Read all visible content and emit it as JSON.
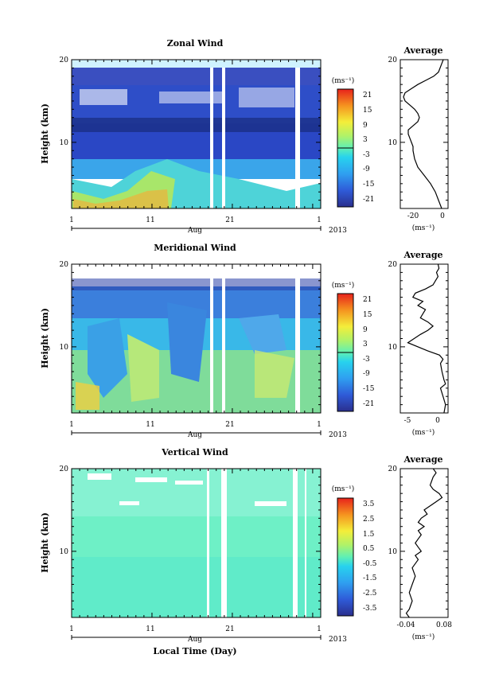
{
  "figure": {
    "xlabel": "Local Time (Day)",
    "year": "2013",
    "month": "Aug",
    "ylabel": "Height (km)",
    "avg_title": "Average",
    "unit": "(ms⁻¹)"
  },
  "chart_data": [
    {
      "type": "heatmap",
      "title": "Zonal Wind",
      "xlabel": "Aug",
      "ylabel": "Height (km)",
      "x_ticks": [
        "1",
        "11",
        "21",
        "1"
      ],
      "y_ticks": [
        "20",
        "10"
      ],
      "ylim": [
        2,
        20
      ],
      "colorbar": {
        "label": "(ms⁻¹)",
        "ticks": [
          "21",
          "15",
          "9",
          "3",
          "-3",
          "-9",
          "-15",
          "-21"
        ],
        "range": [
          -24,
          24
        ]
      }
    },
    {
      "type": "line",
      "title": "Average",
      "xlabel": "(ms⁻¹)",
      "x_ticks": [
        "-20",
        "0"
      ],
      "y_ticks": [
        "20",
        "10"
      ],
      "xlim": [
        -27,
        3
      ],
      "ylim": [
        2,
        20
      ],
      "x": [
        0,
        -1,
        -2,
        -3,
        -6,
        -11,
        -16,
        -20,
        -24,
        -25,
        -24,
        -21,
        -18,
        -16,
        -15,
        -16,
        -19,
        -22,
        -22,
        -21,
        -20,
        -19,
        -19,
        -18,
        -16,
        -12,
        -8,
        -5,
        -3,
        -1
      ],
      "y": [
        20,
        19.5,
        19,
        18.5,
        18,
        17.5,
        17,
        16.5,
        16,
        15.5,
        15,
        14.5,
        14,
        13.5,
        13,
        12.5,
        12,
        11.5,
        11,
        10.5,
        10,
        9.5,
        9,
        8,
        7,
        6,
        5,
        4,
        3,
        2
      ]
    },
    {
      "type": "heatmap",
      "title": "Meridional Wind",
      "xlabel": "Aug",
      "ylabel": "Height (km)",
      "x_ticks": [
        "1",
        "11",
        "21",
        "1"
      ],
      "y_ticks": [
        "20",
        "10"
      ],
      "ylim": [
        2,
        20
      ],
      "colorbar": {
        "label": "(ms⁻¹)",
        "ticks": [
          "21",
          "15",
          "9",
          "3",
          "-3",
          "-9",
          "-15",
          "-21"
        ],
        "range": [
          -24,
          24
        ]
      }
    },
    {
      "type": "line",
      "title": "Average",
      "xlabel": "(ms⁻¹)",
      "x_ticks": [
        "-5",
        "0"
      ],
      "y_ticks": [
        "20",
        "10"
      ],
      "xlim": [
        -7.5,
        2
      ],
      "ylim": [
        2,
        20
      ],
      "x": [
        0,
        0.2,
        -0.3,
        0,
        -0.5,
        -1,
        -2.5,
        -4.5,
        -5,
        -3,
        -4,
        -2.5,
        -3,
        -3.5,
        -2,
        -1,
        -2,
        -3.5,
        -6,
        -2,
        0.3,
        1,
        0.5,
        0.8,
        1.2,
        1.5,
        0.5,
        1,
        1.5,
        1.2
      ],
      "y": [
        20,
        19.5,
        19,
        18.5,
        18,
        17.5,
        17,
        16.5,
        16,
        15.5,
        15,
        14.5,
        14,
        13.5,
        13,
        12.5,
        12,
        11.5,
        10.5,
        9.5,
        9,
        8.5,
        8,
        7,
        6,
        5.5,
        5,
        4,
        3,
        2
      ]
    },
    {
      "type": "heatmap",
      "title": "Vertical Wind",
      "xlabel": "Aug",
      "ylabel": "Height (km)",
      "x_ticks": [
        "1",
        "11",
        "21",
        "1"
      ],
      "y_ticks": [
        "20",
        "10"
      ],
      "ylim": [
        2,
        20
      ],
      "colorbar": {
        "label": "(ms⁻¹)",
        "ticks": [
          "3.5",
          "2.5",
          "1.5",
          "0.5",
          "-0.5",
          "-1.5",
          "-2.5",
          "-3.5"
        ],
        "range": [
          -4,
          4
        ]
      }
    },
    {
      "type": "line",
      "title": "Average",
      "xlabel": "(ms⁻¹)",
      "x_ticks": [
        "-0.04",
        "0.08"
      ],
      "y_ticks": [
        "20",
        "10"
      ],
      "xlim": [
        -0.06,
        0.1
      ],
      "ylim": [
        2,
        20
      ],
      "x": [
        0.05,
        0.06,
        0.05,
        0.04,
        0.05,
        0.07,
        0.08,
        0.06,
        0.04,
        0.02,
        0.03,
        0.01,
        0.0,
        0.02,
        0.0,
        0.01,
        0.0,
        -0.01,
        0.0,
        0.01,
        -0.01,
        0.0,
        -0.02,
        -0.01,
        -0.02,
        -0.03,
        -0.02,
        -0.03,
        -0.04,
        -0.03
      ],
      "y": [
        20,
        19.5,
        19,
        18,
        17.5,
        17,
        16.5,
        16,
        15.5,
        15,
        14.5,
        14,
        13.5,
        13,
        12.5,
        12,
        11.5,
        11,
        10.5,
        10,
        9.5,
        9,
        8,
        7,
        6,
        5,
        4,
        3,
        2.5,
        2
      ]
    }
  ]
}
